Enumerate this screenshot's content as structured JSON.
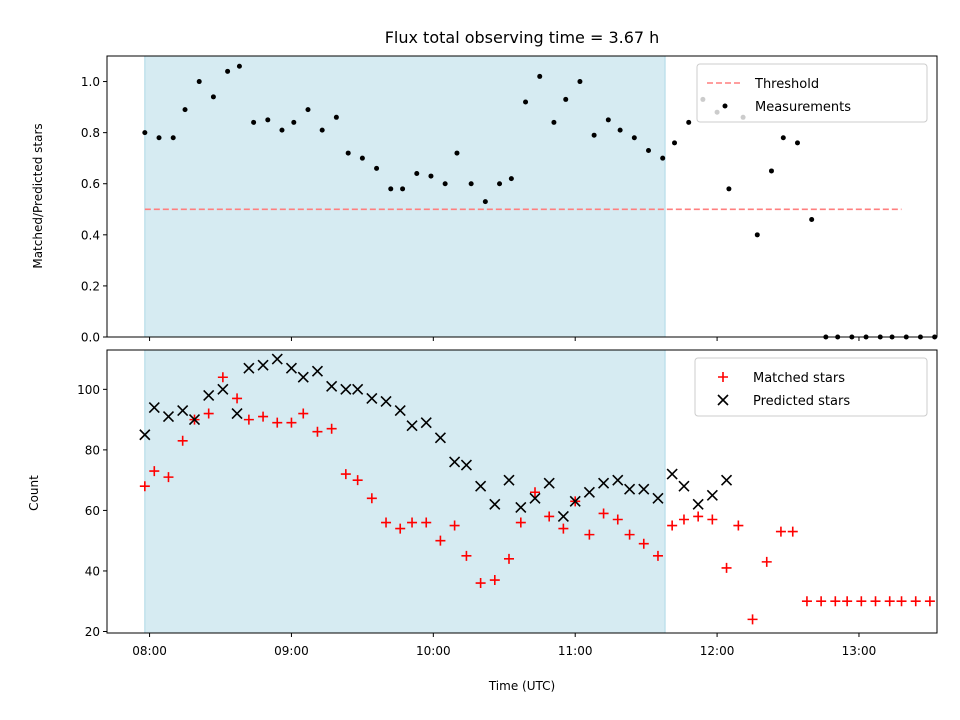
{
  "title": "Flux total observing time = 3.67 h",
  "xlabel": "Time (UTC)",
  "colors": {
    "shade": "#add8e6",
    "threshold": "#ff7f7f",
    "matched": "#ff0000",
    "predicted": "#000000",
    "measurement": "#000000"
  },
  "chart_data": [
    {
      "type": "scatter",
      "panel": "top",
      "title": "Flux total observing time = 3.67 h",
      "xlabel": "",
      "ylabel": "Matched/Predicted stars",
      "xlim": [
        "07:42",
        "13:33"
      ],
      "ylim": [
        0,
        1.1
      ],
      "yticks": [
        0.0,
        0.2,
        0.4,
        0.6,
        0.8,
        1.0
      ],
      "ytick_labels": [
        "0.0",
        "0.2",
        "0.4",
        "0.6",
        "0.8",
        "1.0"
      ],
      "shaded_interval": [
        "07:58",
        "11:38"
      ],
      "legend": {
        "placement": "top-right",
        "entries": [
          "Threshold",
          "Measurements"
        ]
      },
      "threshold": {
        "name": "Threshold",
        "value": 0.5,
        "x": [
          "07:58",
          "13:18"
        ],
        "style": "dashed"
      },
      "series": [
        {
          "name": "Measurements",
          "marker": "dot",
          "x": [
            "07:58",
            "08:04",
            "08:10",
            "08:15",
            "08:21",
            "08:27",
            "08:33",
            "08:38",
            "08:44",
            "08:50",
            "08:56",
            "09:01",
            "09:07",
            "09:13",
            "09:19",
            "09:24",
            "09:30",
            "09:36",
            "09:42",
            "09:47",
            "09:53",
            "09:59",
            "10:05",
            "10:10",
            "10:16",
            "10:22",
            "10:28",
            "10:33",
            "10:39",
            "10:45",
            "10:51",
            "10:56",
            "11:02",
            "11:08",
            "11:14",
            "11:19",
            "11:25",
            "11:31",
            "11:37",
            "11:42",
            "11:48",
            "11:54",
            "12:00",
            "12:05",
            "12:11",
            "12:17",
            "12:23",
            "12:28",
            "12:34",
            "12:40",
            "12:46",
            "12:51",
            "12:57",
            "13:03",
            "13:09",
            "13:14",
            "13:20",
            "13:26",
            "13:32"
          ],
          "y": [
            0.8,
            0.78,
            0.78,
            0.89,
            1.0,
            0.94,
            1.04,
            1.06,
            0.84,
            0.85,
            0.81,
            0.84,
            0.89,
            0.81,
            0.86,
            0.72,
            0.7,
            0.66,
            0.58,
            0.58,
            0.64,
            0.63,
            0.6,
            0.72,
            0.6,
            0.53,
            0.6,
            0.62,
            0.92,
            1.02,
            0.84,
            0.93,
            1.0,
            0.79,
            0.85,
            0.81,
            0.78,
            0.73,
            0.7,
            0.76,
            0.84,
            0.93,
            0.88,
            0.58,
            0.86,
            0.4,
            0.65,
            0.78,
            0.76,
            0.46,
            0.0,
            0.0,
            0.0,
            0.0,
            0.0,
            0.0,
            0.0,
            0.0,
            0.0
          ]
        }
      ]
    },
    {
      "type": "scatter",
      "panel": "bottom",
      "title": "",
      "xlabel": "Time (UTC)",
      "ylabel": "Count",
      "xlim": [
        "07:42",
        "13:33"
      ],
      "ylim": [
        19.5,
        113
      ],
      "yticks": [
        20,
        40,
        60,
        80,
        100
      ],
      "ytick_labels": [
        "20",
        "40",
        "60",
        "80",
        "100"
      ],
      "xticks": [
        "08:00",
        "09:00",
        "10:00",
        "11:00",
        "12:00",
        "13:00"
      ],
      "xtick_labels": [
        "08:00",
        "09:00",
        "10:00",
        "11:00",
        "12:00",
        "13:00"
      ],
      "shaded_interval": [
        "07:58",
        "11:38"
      ],
      "legend": {
        "placement": "top-right",
        "entries": [
          "Matched stars",
          "Predicted stars"
        ]
      },
      "series": [
        {
          "name": "Matched stars",
          "marker": "plus",
          "x": [
            "07:58",
            "08:02",
            "08:08",
            "08:14",
            "08:19",
            "08:25",
            "08:31",
            "08:37",
            "08:42",
            "08:48",
            "08:54",
            "09:00",
            "09:05",
            "09:11",
            "09:17",
            "09:23",
            "09:28",
            "09:34",
            "09:40",
            "09:46",
            "09:51",
            "09:57",
            "10:03",
            "10:09",
            "10:14",
            "10:20",
            "10:26",
            "10:32",
            "10:37",
            "10:43",
            "10:49",
            "10:55",
            "11:00",
            "11:06",
            "11:12",
            "11:18",
            "11:23",
            "11:29",
            "11:35",
            "11:41",
            "11:46",
            "11:52",
            "11:58",
            "12:04",
            "12:09",
            "12:15",
            "12:21",
            "12:27",
            "12:32",
            "12:38",
            "12:44",
            "12:50",
            "12:55",
            "13:01",
            "13:07",
            "13:13",
            "13:18",
            "13:24",
            "13:30"
          ],
          "y": [
            68,
            73,
            71,
            83,
            90,
            92,
            104,
            97,
            90,
            91,
            89,
            89,
            92,
            86,
            87,
            72,
            70,
            64,
            56,
            54,
            56,
            56,
            50,
            55,
            45,
            36,
            37,
            44,
            56,
            66,
            58,
            54,
            63,
            52,
            59,
            57,
            52,
            49,
            45,
            55,
            57,
            58,
            57,
            41,
            55,
            24,
            43,
            53,
            53,
            30,
            30,
            30,
            30,
            30,
            30,
            30,
            30,
            30,
            30
          ]
        },
        {
          "name": "Predicted stars",
          "marker": "x",
          "x": [
            "07:58",
            "08:02",
            "08:08",
            "08:14",
            "08:19",
            "08:25",
            "08:31",
            "08:37",
            "08:42",
            "08:48",
            "08:54",
            "09:00",
            "09:05",
            "09:11",
            "09:17",
            "09:23",
            "09:28",
            "09:34",
            "09:40",
            "09:46",
            "09:51",
            "09:57",
            "10:03",
            "10:09",
            "10:14",
            "10:20",
            "10:26",
            "10:32",
            "10:37",
            "10:43",
            "10:49",
            "10:55",
            "11:00",
            "11:06",
            "11:12",
            "11:18",
            "11:23",
            "11:29",
            "11:35",
            "11:41",
            "11:46",
            "11:52",
            "11:58",
            "12:04"
          ],
          "y": [
            85,
            94,
            91,
            93,
            90,
            98,
            100,
            92,
            107,
            108,
            110,
            107,
            104,
            106,
            101,
            100,
            100,
            97,
            96,
            93,
            88,
            89,
            84,
            76,
            75,
            68,
            62,
            70,
            61,
            64,
            69,
            58,
            63,
            66,
            69,
            70,
            67,
            67,
            64,
            72,
            68,
            62,
            65,
            70
          ]
        }
      ]
    }
  ]
}
